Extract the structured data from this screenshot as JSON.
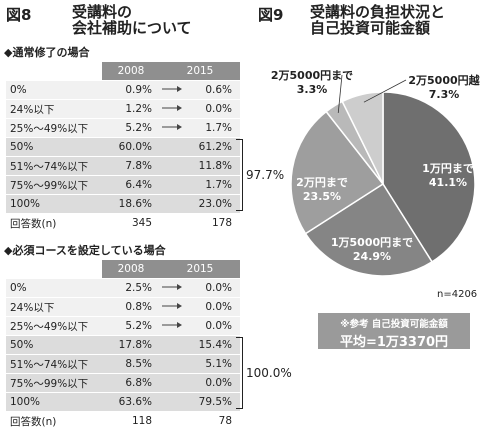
{
  "fig8": {
    "number": "図8",
    "title_line1": "受講料の",
    "title_line2": "会社補助について",
    "table1": {
      "heading": "◆通常修了の場合",
      "years": [
        "2008",
        "2015"
      ],
      "rows": [
        {
          "label": "0%",
          "v2008": "0.9%",
          "v2015": "0.6%",
          "arrow": true
        },
        {
          "label": "24%以下",
          "v2008": "1.2%",
          "v2015": "0.0%",
          "arrow": true
        },
        {
          "label": "25%〜49%以下",
          "v2008": "5.2%",
          "v2015": "1.7%",
          "arrow": true
        },
        {
          "label": "50%",
          "v2008": "60.0%",
          "v2015": "61.2%",
          "arrow": false
        },
        {
          "label": "51%〜74%以下",
          "v2008": "7.8%",
          "v2015": "11.8%",
          "arrow": false
        },
        {
          "label": "75%〜99%以下",
          "v2008": "6.4%",
          "v2015": "1.7%",
          "arrow": false
        },
        {
          "label": "100%",
          "v2008": "18.6%",
          "v2015": "23.0%",
          "arrow": false
        },
        {
          "label": "回答数(n)",
          "v2008": "345",
          "v2015": "178",
          "arrow": false
        }
      ],
      "bracket_total": "97.7%"
    },
    "table2": {
      "heading": "◆必須コースを設定している場合",
      "years": [
        "2008",
        "2015"
      ],
      "rows": [
        {
          "label": "0%",
          "v2008": "2.5%",
          "v2015": "0.0%",
          "arrow": true
        },
        {
          "label": "24%以下",
          "v2008": "0.8%",
          "v2015": "0.0%",
          "arrow": true
        },
        {
          "label": "25%〜49%以下",
          "v2008": "5.2%",
          "v2015": "0.0%",
          "arrow": true
        },
        {
          "label": "50%",
          "v2008": "17.8%",
          "v2015": "15.4%",
          "arrow": false
        },
        {
          "label": "51%〜74%以下",
          "v2008": "8.5%",
          "v2015": "5.1%",
          "arrow": false
        },
        {
          "label": "75%〜99%以下",
          "v2008": "6.8%",
          "v2015": "0.0%",
          "arrow": false
        },
        {
          "label": "100%",
          "v2008": "63.6%",
          "v2015": "79.5%",
          "arrow": false
        },
        {
          "label": "回答数(n)",
          "v2008": "118",
          "v2015": "78",
          "arrow": false
        }
      ],
      "bracket_total": "100.0%"
    }
  },
  "fig9": {
    "number": "図9",
    "title_line1": "受講料の負担状況と",
    "title_line2": "自己投資可能金額",
    "note": "n=4206",
    "reference_title": "※参考 自己投資可能金額",
    "reference_value": "平均=1万3370円"
  },
  "chart_data": {
    "type": "pie",
    "slices": [
      {
        "label": "1万円まで",
        "value": 41.1,
        "value_label": "41.1%",
        "color": "#6f6f6f"
      },
      {
        "label": "1万5000円まで",
        "value": 24.9,
        "value_label": "24.9%",
        "color": "#858585"
      },
      {
        "label": "2万円まで",
        "value": 23.5,
        "value_label": "23.5%",
        "color": "#9e9e9e"
      },
      {
        "label": "2万5000円まで",
        "value": 3.3,
        "value_label": "3.3%",
        "color": "#b9b9b9"
      },
      {
        "label": "2万5000円越",
        "value": 7.3,
        "value_label": "7.3%",
        "color": "#cdcdcd"
      }
    ]
  }
}
